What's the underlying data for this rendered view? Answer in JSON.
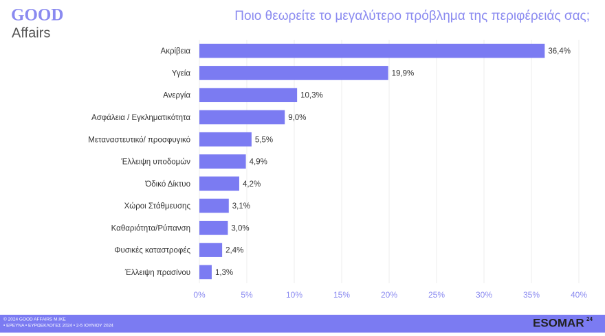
{
  "logo": {
    "line1": "GOOD",
    "line2": "Affairs"
  },
  "chart_data": {
    "type": "bar",
    "orientation": "horizontal",
    "title": "Ποιο θεωρείτε το μεγαλύτερο πρόβλημα της περιφέρειάς σας;",
    "categories": [
      "Ακρίβεια",
      "Υγεία",
      "Ανεργία",
      "Ασφάλεια / Εγκληματικότητα",
      "Μεταναστευτικό/ προσφυγικό",
      "Έλλειψη υποδομών",
      "Όδικό Δίκτυο",
      "Χώροι Στάθμευσης",
      "Καθαριότητα/Ρύπανση",
      "Φυσικές καταστροφές",
      "Έλλειψη πρασίνου"
    ],
    "values": [
      36.4,
      19.9,
      10.3,
      9.0,
      5.5,
      4.9,
      4.2,
      3.1,
      3.0,
      2.4,
      1.3
    ],
    "value_labels": [
      "36,4%",
      "19,9%",
      "10,3%",
      "9,0%",
      "5,5%",
      "4,9%",
      "4,2%",
      "3,1%",
      "3,0%",
      "2,4%",
      "1,3%"
    ],
    "color": "#7b7bf2",
    "xlim": [
      0,
      40
    ],
    "xticks": [
      {
        "value": 0,
        "label": "0%"
      },
      {
        "value": 5,
        "label": "5%"
      },
      {
        "value": 10,
        "label": "10%"
      },
      {
        "value": 15,
        "label": "15%"
      },
      {
        "value": 20,
        "label": "20%"
      },
      {
        "value": 25,
        "label": "25%"
      },
      {
        "value": 30,
        "label": "30%"
      },
      {
        "value": 35,
        "label": "35%"
      },
      {
        "value": 40,
        "label": "40%"
      }
    ],
    "grid": true
  },
  "footer": {
    "copyright": "© 2024 GOOD AFFAIRS M.IKE",
    "survey": "• ΕΡΕΥΝΑ • ΕΥΡΩΕΚΛΟΓΕΣ 2024 • 2-5 ΙΟΥΝΙΟΥ 2024",
    "brand": "ESOMAR",
    "brand_sup": "24"
  }
}
